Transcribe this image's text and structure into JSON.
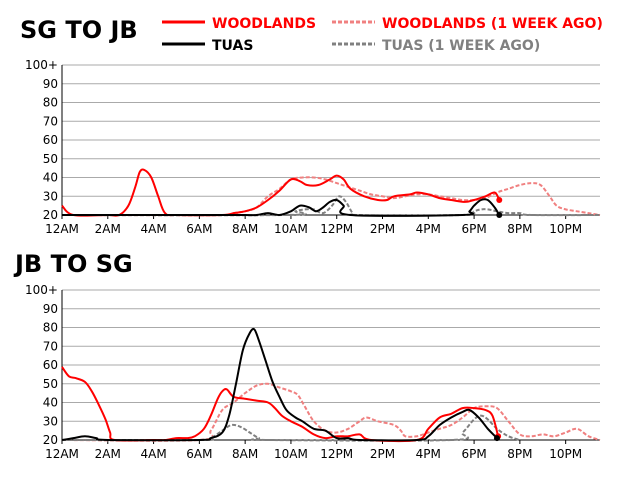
{
  "legend": [
    {
      "label": "WOODLANDS",
      "color": "#ff0000",
      "dashed": false
    },
    {
      "label": "WOODLANDS (1 WEEK AGO)",
      "color": "#f08080",
      "dashed": true
    },
    {
      "label": "TUAS",
      "color": "#000000",
      "dashed": false
    },
    {
      "label": "TUAS (1 WEEK AGO)",
      "color": "#808080",
      "dashed": true
    }
  ],
  "chart_data": [
    {
      "type": "line",
      "title": "SG TO JB",
      "xlim": [
        0,
        23.5
      ],
      "ylim": [
        20,
        100
      ],
      "y_ticks": [
        "20",
        "30",
        "40",
        "50",
        "60",
        "70",
        "80",
        "90",
        "100+"
      ],
      "x_ticks": [
        "12AM",
        "2AM",
        "4AM",
        "6AM",
        "8AM",
        "10AM",
        "12PM",
        "2PM",
        "4PM",
        "6PM",
        "8PM",
        "10PM"
      ],
      "grid": true,
      "series": [
        {
          "name": "WOODLANDS",
          "color": "#ff0000",
          "dashed": false,
          "end_marker": true,
          "points": [
            [
              0,
              25
            ],
            [
              0.5,
              20
            ],
            [
              2,
              20
            ],
            [
              2.5,
              20
            ],
            [
              2.9,
              25
            ],
            [
              3.2,
              35
            ],
            [
              3.4,
              43
            ],
            [
              3.6,
              44
            ],
            [
              3.9,
              40
            ],
            [
              4.2,
              30
            ],
            [
              4.5,
              21
            ],
            [
              5,
              20
            ],
            [
              7,
              20
            ],
            [
              7.5,
              21
            ],
            [
              8,
              22
            ],
            [
              8.5,
              24
            ],
            [
              9,
              28
            ],
            [
              9.5,
              33
            ],
            [
              10,
              39
            ],
            [
              10.4,
              38
            ],
            [
              10.7,
              36
            ],
            [
              11.2,
              36
            ],
            [
              11.7,
              39
            ],
            [
              12,
              41
            ],
            [
              12.3,
              39
            ],
            [
              12.6,
              34
            ],
            [
              13.2,
              30
            ],
            [
              13.8,
              28
            ],
            [
              14.2,
              28
            ],
            [
              14.5,
              30
            ],
            [
              15.2,
              31
            ],
            [
              15.5,
              32
            ],
            [
              16,
              31
            ],
            [
              16.5,
              29
            ],
            [
              17,
              28
            ],
            [
              17.6,
              27
            ],
            [
              18,
              28
            ],
            [
              18.5,
              30
            ],
            [
              18.9,
              32
            ],
            [
              19.1,
              28
            ]
          ]
        },
        {
          "name": "WOODLANDS (1 WEEK AGO)",
          "color": "#f08080",
          "dashed": true,
          "end_marker": false,
          "points": [
            [
              0,
              20
            ],
            [
              7,
              20
            ],
            [
              7.5,
              21
            ],
            [
              8,
              22
            ],
            [
              8.5,
              24
            ],
            [
              9,
              30
            ],
            [
              9.5,
              34
            ],
            [
              10,
              39
            ],
            [
              10.5,
              40
            ],
            [
              11,
              40
            ],
            [
              11.5,
              39
            ],
            [
              12,
              37
            ],
            [
              12.5,
              35
            ],
            [
              13,
              33
            ],
            [
              13.5,
              31
            ],
            [
              14,
              30
            ],
            [
              14.5,
              29
            ],
            [
              15,
              30
            ],
            [
              15.5,
              31
            ],
            [
              16,
              31
            ],
            [
              16.5,
              30
            ],
            [
              17,
              29
            ],
            [
              17.5,
              28
            ],
            [
              18,
              28
            ],
            [
              18.5,
              29
            ],
            [
              19,
              32
            ],
            [
              19.5,
              34
            ],
            [
              20,
              36
            ],
            [
              20.5,
              37
            ],
            [
              20.9,
              36
            ],
            [
              21.3,
              30
            ],
            [
              21.6,
              25
            ],
            [
              22,
              23
            ],
            [
              22.5,
              22
            ],
            [
              23,
              21
            ],
            [
              23.5,
              20
            ]
          ]
        },
        {
          "name": "TUAS",
          "color": "#000000",
          "dashed": false,
          "end_marker": true,
          "points": [
            [
              0,
              20
            ],
            [
              7,
              20
            ],
            [
              8,
              20
            ],
            [
              8.5,
              20
            ],
            [
              9,
              21
            ],
            [
              9.5,
              20
            ],
            [
              10,
              22
            ],
            [
              10.4,
              25
            ],
            [
              10.8,
              24
            ],
            [
              11.1,
              22
            ],
            [
              11.4,
              24
            ],
            [
              11.7,
              27
            ],
            [
              12,
              28
            ],
            [
              12.3,
              25
            ],
            [
              12.6,
              20
            ],
            [
              17.5,
              20
            ],
            [
              17.8,
              22
            ],
            [
              18,
              25
            ],
            [
              18.3,
              28
            ],
            [
              18.6,
              28
            ],
            [
              18.9,
              24
            ],
            [
              19.1,
              20
            ]
          ]
        },
        {
          "name": "TUAS (1 WEEK AGO)",
          "color": "#808080",
          "dashed": true,
          "end_marker": false,
          "points": [
            [
              0,
              20
            ],
            [
              9.8,
              20
            ],
            [
              10.2,
              22
            ],
            [
              10.6,
              23
            ],
            [
              11,
              23
            ],
            [
              11.4,
              21
            ],
            [
              11.8,
              25
            ],
            [
              12.1,
              30
            ],
            [
              12.4,
              27
            ],
            [
              12.7,
              21
            ],
            [
              13,
              20
            ],
            [
              17.5,
              20
            ],
            [
              18,
              22
            ],
            [
              18.3,
              23
            ],
            [
              18.6,
              23
            ],
            [
              19,
              22
            ],
            [
              19.5,
              21
            ],
            [
              20,
              21
            ],
            [
              20.5,
              20
            ],
            [
              23.5,
              20
            ]
          ]
        }
      ]
    },
    {
      "type": "line",
      "title": "JB TO SG",
      "xlim": [
        0,
        23.5
      ],
      "ylim": [
        20,
        100
      ],
      "y_ticks": [
        "20",
        "30",
        "40",
        "50",
        "60",
        "70",
        "80",
        "90",
        "100+"
      ],
      "x_ticks": [
        "12AM",
        "2AM",
        "4AM",
        "6AM",
        "8AM",
        "10AM",
        "12PM",
        "2PM",
        "4PM",
        "6PM",
        "8PM",
        "10PM"
      ],
      "grid": true,
      "series": [
        {
          "name": "WOODLANDS",
          "color": "#ff0000",
          "dashed": false,
          "end_marker": true,
          "points": [
            [
              0,
              59
            ],
            [
              0.3,
              54
            ],
            [
              0.6,
              53
            ],
            [
              1,
              51
            ],
            [
              1.3,
              46
            ],
            [
              1.6,
              39
            ],
            [
              1.9,
              31
            ],
            [
              2.1,
              24
            ],
            [
              2.3,
              20
            ],
            [
              4,
              20
            ],
            [
              4.5,
              20
            ],
            [
              5,
              21
            ],
            [
              5.5,
              21
            ],
            [
              5.8,
              22
            ],
            [
              6.2,
              26
            ],
            [
              6.5,
              33
            ],
            [
              6.8,
              42
            ],
            [
              7,
              46
            ],
            [
              7.2,
              47
            ],
            [
              7.5,
              43
            ],
            [
              8,
              42
            ],
            [
              8.5,
              41
            ],
            [
              9,
              40
            ],
            [
              9.3,
              37
            ],
            [
              9.6,
              33
            ],
            [
              10,
              30
            ],
            [
              10.5,
              27
            ],
            [
              11,
              23
            ],
            [
              11.5,
              21
            ],
            [
              12,
              22
            ],
            [
              12.5,
              22
            ],
            [
              13,
              23
            ],
            [
              13.5,
              20
            ],
            [
              15.5,
              20
            ],
            [
              16,
              26
            ],
            [
              16.5,
              32
            ],
            [
              17,
              34
            ],
            [
              17.5,
              37
            ],
            [
              18,
              37
            ],
            [
              18.5,
              36
            ],
            [
              18.8,
              33
            ],
            [
              19.05,
              22
            ]
          ]
        },
        {
          "name": "WOODLANDS (1 WEEK AGO)",
          "color": "#f08080",
          "dashed": true,
          "end_marker": false,
          "points": [
            [
              0,
              20
            ],
            [
              6,
              20
            ],
            [
              6.5,
              25
            ],
            [
              7,
              36
            ],
            [
              7.5,
              40
            ],
            [
              8,
              45
            ],
            [
              8.5,
              49
            ],
            [
              9,
              50
            ],
            [
              9.5,
              48
            ],
            [
              10,
              46
            ],
            [
              10.3,
              44
            ],
            [
              10.6,
              38
            ],
            [
              11,
              30
            ],
            [
              11.5,
              25
            ],
            [
              12,
              24
            ],
            [
              12.5,
              26
            ],
            [
              13,
              30
            ],
            [
              13.3,
              32
            ],
            [
              13.8,
              30
            ],
            [
              14.5,
              28
            ],
            [
              14.8,
              25
            ],
            [
              15,
              22
            ],
            [
              15.5,
              22
            ],
            [
              16,
              24
            ],
            [
              16.5,
              26
            ],
            [
              17,
              28
            ],
            [
              17.5,
              32
            ],
            [
              18,
              37
            ],
            [
              18.5,
              38
            ],
            [
              19,
              37
            ],
            [
              19.5,
              30
            ],
            [
              20,
              23
            ],
            [
              20.5,
              22
            ],
            [
              21,
              23
            ],
            [
              21.5,
              22
            ],
            [
              22,
              24
            ],
            [
              22.5,
              26
            ],
            [
              23,
              22
            ],
            [
              23.5,
              20
            ]
          ]
        },
        {
          "name": "TUAS",
          "color": "#000000",
          "dashed": false,
          "end_marker": true,
          "points": [
            [
              0,
              20
            ],
            [
              0.5,
              21
            ],
            [
              1,
              22
            ],
            [
              1.5,
              21
            ],
            [
              2,
              20
            ],
            [
              6,
              20
            ],
            [
              6.5,
              21
            ],
            [
              7,
              24
            ],
            [
              7.3,
              33
            ],
            [
              7.6,
              50
            ],
            [
              7.9,
              68
            ],
            [
              8.2,
              77
            ],
            [
              8.4,
              79
            ],
            [
              8.6,
              73
            ],
            [
              8.9,
              62
            ],
            [
              9.2,
              51
            ],
            [
              9.5,
              43
            ],
            [
              9.8,
              36
            ],
            [
              10.2,
              32
            ],
            [
              10.5,
              30
            ],
            [
              11,
              26
            ],
            [
              11.5,
              25
            ],
            [
              12,
              21
            ],
            [
              12.5,
              21
            ],
            [
              13,
              20
            ],
            [
              15.5,
              20
            ],
            [
              16,
              22
            ],
            [
              16.5,
              28
            ],
            [
              17,
              32
            ],
            [
              17.5,
              35
            ],
            [
              17.8,
              36
            ],
            [
              18.2,
              32
            ],
            [
              18.6,
              26
            ],
            [
              19,
              21
            ]
          ]
        },
        {
          "name": "TUAS (1 WEEK AGO)",
          "color": "#808080",
          "dashed": true,
          "end_marker": false,
          "points": [
            [
              0,
              20
            ],
            [
              6,
              20
            ],
            [
              6.5,
              21
            ],
            [
              7,
              25
            ],
            [
              7.4,
              28
            ],
            [
              7.8,
              27
            ],
            [
              8.2,
              24
            ],
            [
              8.6,
              21
            ],
            [
              9,
              20
            ],
            [
              17,
              20
            ],
            [
              17.5,
              24
            ],
            [
              18,
              31
            ],
            [
              18.3,
              33
            ],
            [
              18.6,
              31
            ],
            [
              19,
              26
            ],
            [
              19.5,
              22
            ],
            [
              20,
              20
            ]
          ]
        }
      ]
    }
  ]
}
